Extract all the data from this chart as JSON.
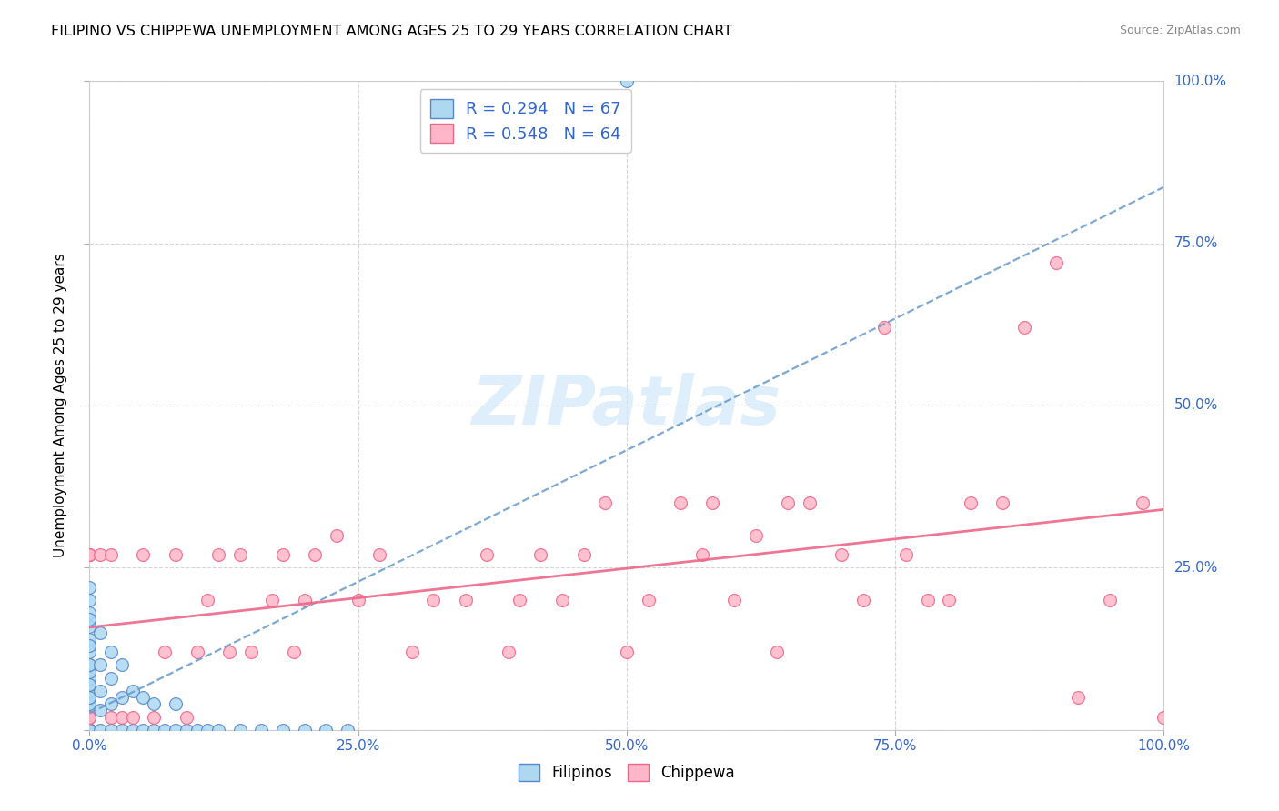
{
  "title": "FILIPINO VS CHIPPEWA UNEMPLOYMENT AMONG AGES 25 TO 29 YEARS CORRELATION CHART",
  "source": "Source: ZipAtlas.com",
  "ylabel": "Unemployment Among Ages 25 to 29 years",
  "xlim": [
    0,
    1.0
  ],
  "ylim": [
    0,
    1.0
  ],
  "xticks": [
    0.0,
    0.25,
    0.5,
    0.75,
    1.0
  ],
  "yticks": [
    0.0,
    0.25,
    0.5,
    0.75,
    1.0
  ],
  "xticklabels": [
    "0.0%",
    "25.0%",
    "50.0%",
    "75.0%",
    "100.0%"
  ],
  "yticklabels": [
    "0.0%",
    "25.0%",
    "50.0%",
    "75.0%",
    "100.0%"
  ],
  "filipinos_color": "#ADD8F0",
  "chippewa_color": "#FFB6C8",
  "filipinos_edge": "#5588CC",
  "chippewa_edge": "#EE6688",
  "line_filipino_color": "#6699CC",
  "line_chippewa_color": "#EE6688",
  "watermark_color": "#D0E8F8",
  "filipinos_x": [
    0.0,
    0.0,
    0.0,
    0.0,
    0.0,
    0.0,
    0.0,
    0.0,
    0.0,
    0.0,
    0.0,
    0.0,
    0.0,
    0.0,
    0.0,
    0.0,
    0.0,
    0.0,
    0.0,
    0.0,
    0.0,
    0.0,
    0.0,
    0.0,
    0.0,
    0.0,
    0.0,
    0.0,
    0.0,
    0.0,
    0.0,
    0.0,
    0.0,
    0.0,
    0.0,
    0.01,
    0.01,
    0.01,
    0.01,
    0.01,
    0.02,
    0.02,
    0.02,
    0.02,
    0.03,
    0.03,
    0.03,
    0.04,
    0.04,
    0.05,
    0.05,
    0.06,
    0.06,
    0.07,
    0.08,
    0.08,
    0.09,
    0.1,
    0.11,
    0.12,
    0.14,
    0.16,
    0.18,
    0.2,
    0.22,
    0.24,
    0.5
  ],
  "filipinos_y": [
    0.0,
    0.0,
    0.0,
    0.0,
    0.0,
    0.0,
    0.0,
    0.0,
    0.0,
    0.0,
    0.0,
    0.0,
    0.0,
    0.0,
    0.0,
    0.02,
    0.03,
    0.04,
    0.05,
    0.06,
    0.07,
    0.08,
    0.09,
    0.1,
    0.12,
    0.14,
    0.16,
    0.18,
    0.2,
    0.22,
    0.05,
    0.07,
    0.1,
    0.13,
    0.17,
    0.0,
    0.03,
    0.06,
    0.1,
    0.15,
    0.0,
    0.04,
    0.08,
    0.12,
    0.0,
    0.05,
    0.1,
    0.0,
    0.06,
    0.0,
    0.05,
    0.0,
    0.04,
    0.0,
    0.0,
    0.04,
    0.0,
    0.0,
    0.0,
    0.0,
    0.0,
    0.0,
    0.0,
    0.0,
    0.0,
    0.0,
    1.0
  ],
  "chippewa_x": [
    0.0,
    0.0,
    0.0,
    0.0,
    0.0,
    0.0,
    0.01,
    0.02,
    0.02,
    0.03,
    0.04,
    0.05,
    0.06,
    0.07,
    0.08,
    0.09,
    0.1,
    0.11,
    0.12,
    0.13,
    0.14,
    0.15,
    0.17,
    0.18,
    0.19,
    0.2,
    0.21,
    0.23,
    0.25,
    0.27,
    0.3,
    0.32,
    0.35,
    0.37,
    0.39,
    0.4,
    0.42,
    0.44,
    0.46,
    0.48,
    0.5,
    0.52,
    0.55,
    0.57,
    0.58,
    0.6,
    0.62,
    0.64,
    0.65,
    0.67,
    0.7,
    0.72,
    0.74,
    0.76,
    0.78,
    0.8,
    0.82,
    0.85,
    0.87,
    0.9,
    0.92,
    0.95,
    0.98,
    1.0
  ],
  "chippewa_y": [
    0.27,
    0.27,
    0.27,
    0.02,
    0.02,
    0.27,
    0.27,
    0.02,
    0.27,
    0.02,
    0.02,
    0.27,
    0.02,
    0.12,
    0.27,
    0.02,
    0.12,
    0.2,
    0.27,
    0.12,
    0.27,
    0.12,
    0.2,
    0.27,
    0.12,
    0.2,
    0.27,
    0.3,
    0.2,
    0.27,
    0.12,
    0.2,
    0.2,
    0.27,
    0.12,
    0.2,
    0.27,
    0.2,
    0.27,
    0.35,
    0.12,
    0.2,
    0.35,
    0.27,
    0.35,
    0.2,
    0.3,
    0.12,
    0.35,
    0.35,
    0.27,
    0.2,
    0.62,
    0.27,
    0.2,
    0.2,
    0.35,
    0.35,
    0.62,
    0.72,
    0.05,
    0.2,
    0.35,
    0.02
  ]
}
